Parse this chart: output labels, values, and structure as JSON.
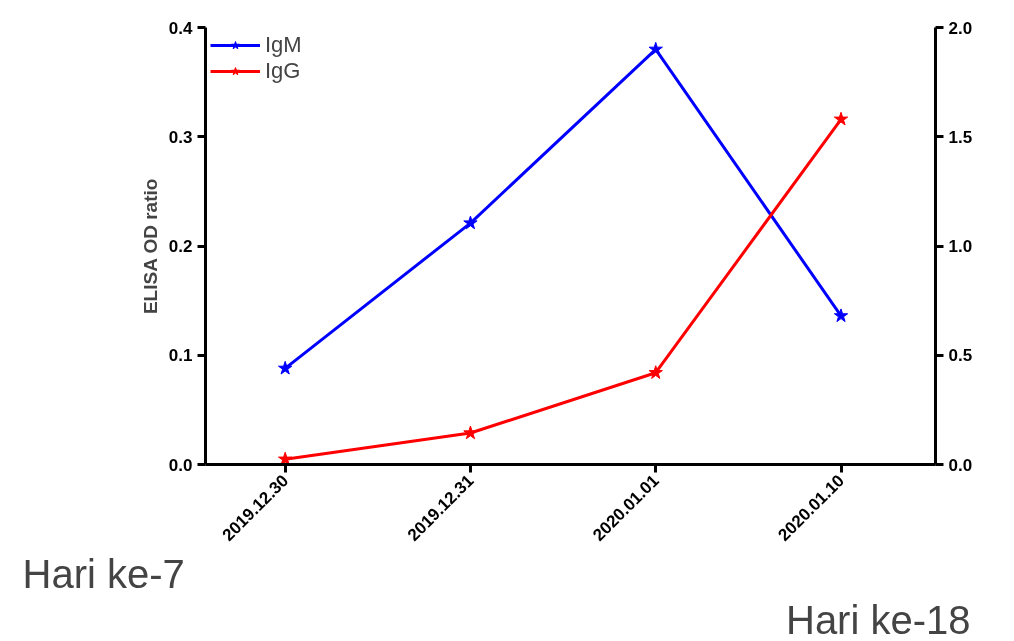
{
  "chart_data": {
    "type": "line",
    "ylabel": "ELISA OD ratio",
    "categories": [
      "2019.12.30",
      "2019.12.31",
      "2020.01.01",
      "2020.01.10"
    ],
    "series": [
      {
        "name": "IgM",
        "color": "#0000ff",
        "values": [
          0.088,
          0.221,
          0.38,
          0.136
        ]
      },
      {
        "name": "IgG",
        "color": "#ff0000",
        "axis": "y2",
        "values": [
          0.024,
          0.144,
          0.42,
          1.58
        ]
      }
    ],
    "ylim": [
      0,
      0.4
    ],
    "yticks": [
      {
        "value": 0,
        "label": "0.0"
      },
      0.1,
      0.2,
      0.3,
      0.4
    ],
    "y2lim": [
      0,
      2
    ],
    "y2ticks": [
      {
        "value": 0,
        "label": "0.0"
      },
      0.5,
      {
        "value": 1,
        "label": "1.0"
      },
      1.5,
      {
        "value": 2,
        "label": "2.0"
      }
    ],
    "marker": "star",
    "line_style": "solid",
    "legend": "top left",
    "grid": false,
    "annotations": [
      "Hari ke-7",
      "Hari ke-18"
    ]
  }
}
